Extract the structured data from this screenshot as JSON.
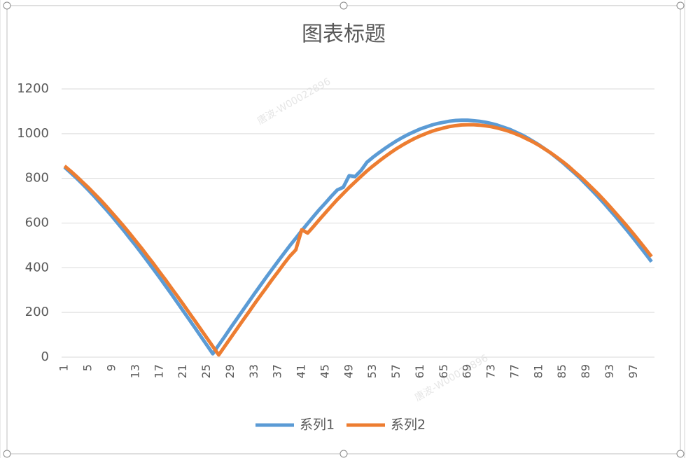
{
  "chart_data": {
    "type": "line",
    "title": "图表标题",
    "watermark": "唐波-W00022896",
    "categories": [
      "1",
      null,
      null,
      null,
      "5",
      null,
      null,
      null,
      "9",
      null,
      null,
      null,
      "13",
      null,
      null,
      null,
      "17",
      null,
      null,
      null,
      "21",
      null,
      null,
      null,
      "25",
      null,
      null,
      null,
      "29",
      null,
      null,
      null,
      "33",
      null,
      null,
      null,
      "37",
      null,
      null,
      null,
      "41",
      null,
      null,
      null,
      "45",
      null,
      null,
      null,
      "49",
      null,
      null,
      null,
      "53",
      null,
      null,
      null,
      "57",
      null,
      null,
      null,
      "61",
      null,
      null,
      null,
      "65",
      null,
      null,
      null,
      "69",
      null,
      null,
      null,
      "73",
      null,
      null,
      null,
      "77",
      null,
      null,
      null,
      "81",
      null,
      null,
      null,
      "85",
      null,
      null,
      null,
      "89",
      null,
      null,
      null,
      "93",
      null,
      null,
      null,
      "97",
      null,
      null,
      null
    ],
    "series": [
      {
        "name": "系列1",
        "color": "#5b9bd5",
        "values": [
          850,
          826,
          801,
          775,
          748,
          720,
          690,
          661,
          630,
          598,
          566,
          532,
          499,
          464,
          429,
          393,
          357,
          320,
          283,
          245,
          207,
          169,
          131,
          92,
          54,
          15,
          54,
          92,
          131,
          169,
          207,
          245,
          283,
          320,
          357,
          393,
          429,
          464,
          499,
          532,
          566,
          598,
          630,
          661,
          690,
          720,
          748,
          760,
          812,
          808,
          835,
          872,
          894,
          914,
          933,
          951,
          968,
          983,
          997,
          1009,
          1021,
          1030,
          1039,
          1046,
          1051,
          1056,
          1059,
          1060,
          1060,
          1058,
          1055,
          1051,
          1045,
          1038,
          1029,
          1020,
          1008,
          996,
          982,
          966,
          950,
          932,
          913,
          892,
          871,
          847,
          824,
          799,
          772,
          745,
          717,
          688,
          657,
          627,
          595,
          563,
          530,
          496,
          462,
          427
        ]
      },
      {
        "name": "系列2",
        "color": "#ed7d31",
        "values": [
          855,
          833,
          809,
          784,
          759,
          732,
          705,
          676,
          646,
          616,
          585,
          553,
          520,
          487,
          452,
          418,
          382,
          347,
          310,
          274,
          237,
          199,
          162,
          124,
          86,
          48,
          10,
          48,
          86,
          124,
          162,
          199,
          237,
          274,
          310,
          347,
          382,
          418,
          452,
          480,
          570,
          555,
          585,
          616,
          646,
          676,
          705,
          732,
          759,
          784,
          809,
          833,
          855,
          876,
          896,
          915,
          933,
          949,
          964,
          978,
          990,
          1001,
          1011,
          1019,
          1026,
          1032,
          1036,
          1039,
          1040,
          1040,
          1038,
          1035,
          1031,
          1025,
          1018,
          1010,
          1000,
          989,
          976,
          963,
          948,
          931,
          914,
          895,
          875,
          854,
          830,
          807,
          782,
          756,
          730,
          702,
          673,
          643,
          613,
          582,
          550,
          517,
          484,
          450
        ]
      }
    ],
    "ylim": [
      0,
      1200
    ],
    "yticks": [
      0,
      200,
      400,
      600,
      800,
      1000,
      1200
    ],
    "grid": true,
    "legend": "bottom"
  }
}
